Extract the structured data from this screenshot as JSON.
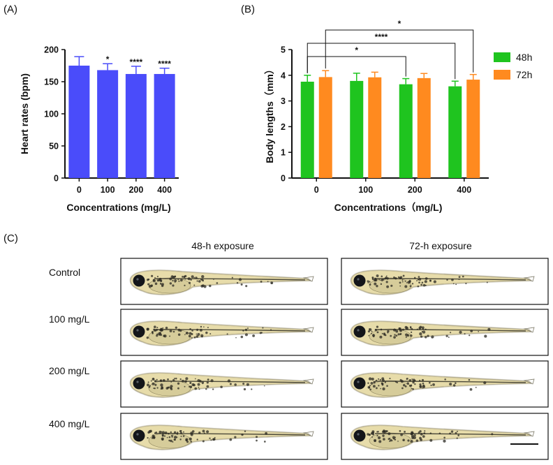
{
  "colors": {
    "panel_a_bar": "#4a4cfa",
    "series_48h": "#1fc41f",
    "series_72h": "#ff8a1f",
    "axis": "#111111",
    "larva_body": "#e7dcaa",
    "larva_eye": "#14161a"
  },
  "panel_a": {
    "label": "(A)",
    "chart_data": {
      "type": "bar",
      "categories": [
        "0",
        "100",
        "200",
        "400"
      ],
      "values": [
        175,
        168,
        162,
        162
      ],
      "errors": [
        14,
        10,
        12,
        9
      ],
      "significance": [
        "",
        "*",
        "****",
        "****"
      ],
      "xlabel": "Concentrations (mg/L)",
      "ylabel": "Heart rates (bpm)",
      "ylim": [
        0,
        200
      ],
      "yticks": [
        "0",
        "50",
        "100",
        "150",
        "200"
      ],
      "grid": false
    }
  },
  "panel_b": {
    "label": "(B)",
    "chart_data": {
      "type": "bar",
      "categories": [
        "0",
        "100",
        "200",
        "400"
      ],
      "series": [
        {
          "name": "48h",
          "values": [
            3.75,
            3.78,
            3.65,
            3.57
          ],
          "errors": [
            0.25,
            0.3,
            0.22,
            0.2
          ]
        },
        {
          "name": "72h",
          "values": [
            3.93,
            3.92,
            3.89,
            3.83
          ],
          "errors": [
            0.25,
            0.2,
            0.18,
            0.2
          ]
        }
      ],
      "comparisons": [
        {
          "label": "*",
          "from_category": "0",
          "from_series": "48h",
          "to_category": "200",
          "to_series": "48h"
        },
        {
          "label": "****",
          "from_category": "0",
          "from_series": "48h",
          "to_category": "400",
          "to_series": "48h"
        },
        {
          "label": "*",
          "from_category": "0",
          "from_series": "72h",
          "to_category": "400",
          "to_series": "72h"
        }
      ],
      "xlabel": "Concentrations（mg/L)",
      "ylabel": "Body lengths（mm）",
      "ylim": [
        0,
        5
      ],
      "yticks": [
        "0",
        "1",
        "2",
        "3",
        "4",
        "5"
      ],
      "legend_placement": "right",
      "grid": false
    }
  },
  "panel_c": {
    "label": "(C)",
    "columns": [
      "48-h exposure",
      "72-h exposure"
    ],
    "rows": [
      "Control",
      "100 mg/L",
      "200 mg/L",
      "400 mg/L"
    ],
    "larvae": [
      {
        "row": "Control",
        "column": "48-h exposure",
        "image": "zebrafish-larva"
      },
      {
        "row": "Control",
        "column": "72-h exposure",
        "image": "zebrafish-larva"
      },
      {
        "row": "100 mg/L",
        "column": "48-h exposure",
        "image": "zebrafish-larva"
      },
      {
        "row": "100 mg/L",
        "column": "72-h exposure",
        "image": "zebrafish-larva"
      },
      {
        "row": "200 mg/L",
        "column": "48-h exposure",
        "image": "zebrafish-larva"
      },
      {
        "row": "200 mg/L",
        "column": "72-h exposure",
        "image": "zebrafish-larva"
      },
      {
        "row": "400 mg/L",
        "column": "48-h exposure",
        "image": "zebrafish-larva"
      },
      {
        "row": "400 mg/L",
        "column": "72-h exposure",
        "image": "zebrafish-larva"
      }
    ],
    "scale_bar": "scale-bar-icon"
  }
}
